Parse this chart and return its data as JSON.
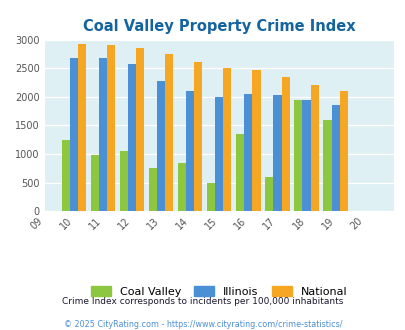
{
  "title": "Coal Valley Property Crime Index",
  "x_labels": [
    "09",
    "10",
    "11",
    "12",
    "13",
    "14",
    "15",
    "16",
    "17",
    "18",
    "19",
    "20"
  ],
  "coal_valley": [
    0,
    1250,
    975,
    1050,
    750,
    850,
    500,
    1350,
    600,
    1950,
    1600,
    0
  ],
  "illinois": [
    0,
    2675,
    2675,
    2575,
    2275,
    2100,
    2000,
    2050,
    2025,
    1950,
    1850,
    0
  ],
  "national": [
    0,
    2925,
    2900,
    2850,
    2750,
    2600,
    2500,
    2475,
    2350,
    2200,
    2100,
    0
  ],
  "color_coal_valley": "#8DC63F",
  "color_illinois": "#4B8FD5",
  "color_national": "#F5A623",
  "ylim": [
    0,
    3000
  ],
  "yticks": [
    0,
    500,
    1000,
    1500,
    2000,
    2500,
    3000
  ],
  "subtitle": "Crime Index corresponds to incidents per 100,000 inhabitants",
  "footer": "© 2025 CityRating.com - https://www.cityrating.com/crime-statistics/",
  "title_color": "#1464A0",
  "subtitle_color": "#1a1a2e",
  "footer_color": "#4B8FD5",
  "bg_color": "#DFF0F5",
  "bar_width": 0.28,
  "legend_labels": [
    "Coal Valley",
    "Illinois",
    "National"
  ]
}
